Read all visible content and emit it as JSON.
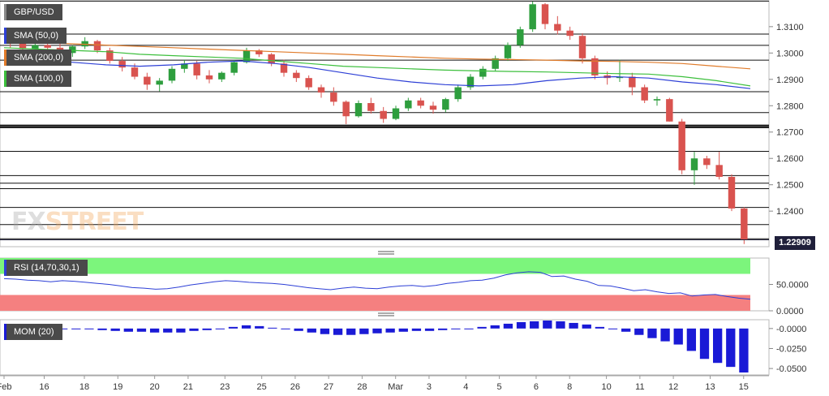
{
  "symbol": "GBP/USD",
  "watermark": {
    "fx": "FX",
    "street": "STREET"
  },
  "current_price_label": "1.22909",
  "legends": {
    "sma50": "SMA (50,0)",
    "sma200": "SMA (200,0)",
    "sma100": "SMA (100,0)",
    "rsi": "RSI (14,70,30,1)",
    "mom": "MOM (20)"
  },
  "colors": {
    "up": "#2e9e3e",
    "down": "#d9534f",
    "sma50": "#2d3fd6",
    "sma200": "#e07b2a",
    "sma100": "#3cbf3c",
    "rsi_line": "#2d3fd6",
    "rsi_over": "#7cf57c",
    "rsi_under": "#f58080",
    "mom": "#1a1ad6",
    "axis_text": "#333333"
  },
  "chart_data": {
    "type": "candlestick",
    "title": "GBP/USD",
    "ylim": [
      1.2265,
      1.3195
    ],
    "y_ticks": [
      "1.3100",
      "1.3000",
      "1.2900",
      "1.2800",
      "1.2700",
      "1.2600",
      "1.2500",
      "1.2400"
    ],
    "y_tick_values": [
      1.31,
      1.3,
      1.29,
      1.28,
      1.27,
      1.26,
      1.25,
      1.24
    ],
    "x_tick_labels": [
      {
        "i": 0,
        "label": "Feb"
      },
      {
        "i": 12,
        "label": "16"
      },
      {
        "i": 24,
        "label": "18"
      },
      {
        "i": 34,
        "label": "19"
      },
      {
        "i": 45,
        "label": "20"
      },
      {
        "i": 55,
        "label": "21"
      },
      {
        "i": 66,
        "label": "23"
      },
      {
        "i": 77,
        "label": "25"
      },
      {
        "i": 87,
        "label": "26"
      },
      {
        "i": 97,
        "label": "27"
      },
      {
        "i": 107,
        "label": "28"
      },
      {
        "i": 117,
        "label": "Mar"
      },
      {
        "i": 127,
        "label": "3"
      },
      {
        "i": 138,
        "label": "4"
      },
      {
        "i": 148,
        "label": "5"
      },
      {
        "i": 159,
        "label": "6"
      },
      {
        "i": 169,
        "label": "8"
      },
      {
        "i": 180,
        "label": "10"
      },
      {
        "i": 190,
        "label": "11"
      },
      {
        "i": 200,
        "label": "12"
      },
      {
        "i": 211,
        "label": "13"
      },
      {
        "i": 221,
        "label": "15"
      }
    ],
    "horizontal_levels": [
      1.3197,
      1.3072,
      1.3029,
      1.2973,
      1.2853,
      1.2774,
      1.2725,
      1.2718,
      1.2627,
      1.2535,
      1.2506,
      1.2485,
      1.2414,
      1.2349,
      1.2295
    ],
    "candles_sampled": [
      {
        "o": 1.304,
        "h": 1.3055,
        "l": 1.302,
        "c": 1.3035
      },
      {
        "o": 1.3035,
        "h": 1.305,
        "l": 1.3005,
        "c": 1.3015
      },
      {
        "o": 1.3015,
        "h": 1.304,
        "l": 1.3,
        "c": 1.303
      },
      {
        "o": 1.303,
        "h": 1.3055,
        "l": 1.301,
        "c": 1.302
      },
      {
        "o": 1.302,
        "h": 1.3035,
        "l": 1.299,
        "c": 1.3
      },
      {
        "o": 1.3,
        "h": 1.303,
        "l": 1.2985,
        "c": 1.3025
      },
      {
        "o": 1.3025,
        "h": 1.306,
        "l": 1.3015,
        "c": 1.3045
      },
      {
        "o": 1.3045,
        "h": 1.305,
        "l": 1.3,
        "c": 1.301
      },
      {
        "o": 1.301,
        "h": 1.302,
        "l": 1.296,
        "c": 1.297
      },
      {
        "o": 1.297,
        "h": 1.2985,
        "l": 1.293,
        "c": 1.2945
      },
      {
        "o": 1.2945,
        "h": 1.296,
        "l": 1.29,
        "c": 1.291
      },
      {
        "o": 1.291,
        "h": 1.2925,
        "l": 1.286,
        "c": 1.288
      },
      {
        "o": 1.288,
        "h": 1.2905,
        "l": 1.2855,
        "c": 1.2895
      },
      {
        "o": 1.2895,
        "h": 1.295,
        "l": 1.2885,
        "c": 1.294
      },
      {
        "o": 1.294,
        "h": 1.2975,
        "l": 1.2925,
        "c": 1.296
      },
      {
        "o": 1.296,
        "h": 1.297,
        "l": 1.29,
        "c": 1.2915
      },
      {
        "o": 1.2915,
        "h": 1.2935,
        "l": 1.2885,
        "c": 1.29
      },
      {
        "o": 1.29,
        "h": 1.293,
        "l": 1.289,
        "c": 1.2925
      },
      {
        "o": 1.2925,
        "h": 1.2975,
        "l": 1.2915,
        "c": 1.2965
      },
      {
        "o": 1.2965,
        "h": 1.302,
        "l": 1.296,
        "c": 1.301
      },
      {
        "o": 1.301,
        "h": 1.3015,
        "l": 1.2985,
        "c": 1.2995
      },
      {
        "o": 1.2995,
        "h": 1.3,
        "l": 1.295,
        "c": 1.296
      },
      {
        "o": 1.296,
        "h": 1.2975,
        "l": 1.291,
        "c": 1.2925
      },
      {
        "o": 1.2925,
        "h": 1.2935,
        "l": 1.289,
        "c": 1.2905
      },
      {
        "o": 1.2905,
        "h": 1.2915,
        "l": 1.286,
        "c": 1.287
      },
      {
        "o": 1.287,
        "h": 1.288,
        "l": 1.283,
        "c": 1.285
      },
      {
        "o": 1.285,
        "h": 1.287,
        "l": 1.28,
        "c": 1.2815
      },
      {
        "o": 1.2815,
        "h": 1.282,
        "l": 1.273,
        "c": 1.276
      },
      {
        "o": 1.276,
        "h": 1.282,
        "l": 1.2755,
        "c": 1.281
      },
      {
        "o": 1.281,
        "h": 1.283,
        "l": 1.277,
        "c": 1.278
      },
      {
        "o": 1.278,
        "h": 1.2795,
        "l": 1.2735,
        "c": 1.275
      },
      {
        "o": 1.275,
        "h": 1.28,
        "l": 1.2745,
        "c": 1.279
      },
      {
        "o": 1.279,
        "h": 1.283,
        "l": 1.278,
        "c": 1.282
      },
      {
        "o": 1.282,
        "h": 1.283,
        "l": 1.279,
        "c": 1.28
      },
      {
        "o": 1.28,
        "h": 1.2815,
        "l": 1.277,
        "c": 1.2785
      },
      {
        "o": 1.2785,
        "h": 1.283,
        "l": 1.2775,
        "c": 1.2825
      },
      {
        "o": 1.2825,
        "h": 1.288,
        "l": 1.2815,
        "c": 1.287
      },
      {
        "o": 1.287,
        "h": 1.292,
        "l": 1.286,
        "c": 1.291
      },
      {
        "o": 1.291,
        "h": 1.295,
        "l": 1.29,
        "c": 1.294
      },
      {
        "o": 1.294,
        "h": 1.299,
        "l": 1.293,
        "c": 1.298
      },
      {
        "o": 1.298,
        "h": 1.304,
        "l": 1.297,
        "c": 1.303
      },
      {
        "o": 1.303,
        "h": 1.31,
        "l": 1.302,
        "c": 1.309
      },
      {
        "o": 1.309,
        "h": 1.3195,
        "l": 1.308,
        "c": 1.3185
      },
      {
        "o": 1.3185,
        "h": 1.319,
        "l": 1.309,
        "c": 1.311
      },
      {
        "o": 1.311,
        "h": 1.314,
        "l": 1.307,
        "c": 1.3085
      },
      {
        "o": 1.3085,
        "h": 1.31,
        "l": 1.305,
        "c": 1.3065
      },
      {
        "o": 1.3065,
        "h": 1.3075,
        "l": 1.296,
        "c": 1.298
      },
      {
        "o": 1.298,
        "h": 1.299,
        "l": 1.29,
        "c": 1.2915
      },
      {
        "o": 1.2915,
        "h": 1.293,
        "l": 1.288,
        "c": 1.2905
      },
      {
        "o": 1.2905,
        "h": 1.2975,
        "l": 1.289,
        "c": 1.291
      },
      {
        "o": 1.291,
        "h": 1.2925,
        "l": 1.284,
        "c": 1.287
      },
      {
        "o": 1.287,
        "h": 1.288,
        "l": 1.281,
        "c": 1.282
      },
      {
        "o": 1.282,
        "h": 1.2835,
        "l": 1.28,
        "c": 1.2825
      },
      {
        "o": 1.2825,
        "h": 1.283,
        "l": 1.274,
        "c": 1.274
      },
      {
        "o": 1.274,
        "h": 1.275,
        "l": 1.254,
        "c": 1.2555
      },
      {
        "o": 1.2555,
        "h": 1.2625,
        "l": 1.25,
        "c": 1.26
      },
      {
        "o": 1.26,
        "h": 1.261,
        "l": 1.256,
        "c": 1.2575
      },
      {
        "o": 1.2575,
        "h": 1.2625,
        "l": 1.252,
        "c": 1.253
      },
      {
        "o": 1.253,
        "h": 1.254,
        "l": 1.24,
        "c": 1.241
      },
      {
        "o": 1.241,
        "h": 1.2415,
        "l": 1.2275,
        "c": 1.2291
      }
    ],
    "sma50": [
      1.2985,
      1.2975,
      1.2965,
      1.2955,
      1.295,
      1.2955,
      1.2965,
      1.297,
      1.296,
      1.2945,
      1.2925,
      1.2905,
      1.289,
      1.288,
      1.2875,
      1.288,
      1.2895,
      1.2905,
      1.291,
      1.2905,
      1.289,
      1.288,
      1.2865
    ],
    "sma100": [
      1.302,
      1.3015,
      1.301,
      1.3005,
      1.2995,
      1.299,
      1.2985,
      1.298,
      1.297,
      1.296,
      1.295,
      1.2945,
      1.294,
      1.2935,
      1.2932,
      1.293,
      1.2928,
      1.2925,
      1.2922,
      1.292,
      1.291,
      1.2895,
      1.2875
    ],
    "sma200": [
      1.3045,
      1.304,
      1.3035,
      1.303,
      1.3025,
      1.302,
      1.3015,
      1.301,
      1.3005,
      1.3,
      1.2995,
      1.299,
      1.2985,
      1.298,
      1.2977,
      1.2975,
      1.2973,
      1.297,
      1.2968,
      1.2965,
      1.296,
      1.295,
      1.294
    ],
    "rsi": {
      "ylim": [
        0,
        100
      ],
      "y_ticks": [
        "50.0000",
        "0.0000"
      ],
      "y_tick_values": [
        50,
        0
      ],
      "overbought": 70,
      "oversold": 30,
      "values": [
        61,
        60,
        58,
        57,
        55,
        57,
        56,
        54,
        52,
        50,
        47,
        44,
        43,
        41,
        42,
        45,
        49,
        52,
        55,
        57,
        56,
        54,
        53,
        52,
        50,
        47,
        44,
        42,
        40,
        43,
        45,
        43,
        42,
        45,
        47,
        48,
        46,
        48,
        52,
        54,
        57,
        58,
        62,
        68,
        72,
        74,
        73,
        65,
        66,
        60,
        56,
        48,
        47,
        43,
        38,
        40,
        36,
        33,
        34,
        28,
        30,
        31,
        27,
        24,
        22
      ]
    },
    "mom": {
      "ylim": [
        -0.058,
        0.011
      ],
      "y_ticks": [
        "-0.0000",
        "-0.0250",
        "-0.0500"
      ],
      "y_tick_values": [
        0.0,
        -0.025,
        -0.05
      ],
      "values": [
        0.001,
        0.001,
        0.001,
        0.0,
        0.0,
        -0.001,
        -0.001,
        -0.002,
        -0.003,
        -0.004,
        -0.004,
        -0.005,
        -0.005,
        -0.005,
        -0.003,
        -0.002,
        0.0,
        0.002,
        0.004,
        0.003,
        0.001,
        -0.001,
        -0.003,
        -0.005,
        -0.007,
        -0.008,
        -0.008,
        -0.007,
        -0.006,
        -0.005,
        -0.004,
        -0.003,
        -0.003,
        -0.002,
        -0.001,
        0.0,
        0.002,
        0.004,
        0.006,
        0.008,
        0.009,
        0.01,
        0.009,
        0.007,
        0.005,
        0.002,
        -0.001,
        -0.004,
        -0.008,
        -0.012,
        -0.016,
        -0.02,
        -0.028,
        -0.038,
        -0.043,
        -0.048,
        -0.055
      ]
    }
  }
}
